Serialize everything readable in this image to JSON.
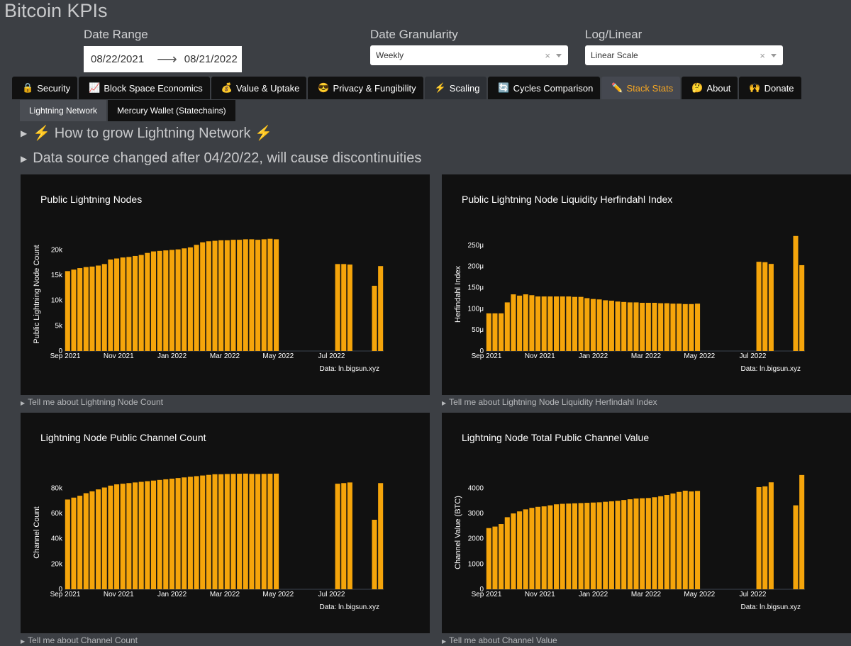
{
  "app": {
    "title": "Bitcoin KPIs"
  },
  "controls": {
    "date_range": {
      "label": "Date Range",
      "start": "08/22/2021",
      "end": "08/21/2022",
      "arrow": "⟶"
    },
    "granularity": {
      "label": "Date Granularity",
      "value": "Weekly",
      "clear": "×"
    },
    "scale": {
      "label": "Log/Linear",
      "value": "Linear Scale",
      "clear": "×"
    }
  },
  "tabs": [
    {
      "icon": "🔒",
      "label": "Security"
    },
    {
      "icon": "📈",
      "label": "Block Space Economics"
    },
    {
      "icon": "💰",
      "label": "Value & Uptake"
    },
    {
      "icon": "😎",
      "label": "Privacy & Fungibility"
    },
    {
      "icon": "⚡",
      "label": "Scaling"
    },
    {
      "icon": "🔄",
      "label": "Cycles Comparison"
    },
    {
      "icon": "✏️",
      "label": "Stack Stats"
    },
    {
      "icon": "🤔",
      "label": "About"
    },
    {
      "icon": "🙌",
      "label": "Donate"
    }
  ],
  "subtabs": [
    {
      "label": "Lightning Network"
    },
    {
      "label": "Mercury Wallet (Statechains)"
    }
  ],
  "disclosures": [
    {
      "text": "⚡ How to grow Lightning Network ⚡"
    },
    {
      "text": "Data source changed after 04/20/22, will cause discontinuities"
    }
  ],
  "tell_links": [
    "Tell me about Lightning Node Count",
    "Tell me about Lightning Node Liquidity Herfindahl Index",
    "Tell me about Channel Count",
    "Tell me about Channel Value"
  ],
  "bar_color": "#f5a50b",
  "chart_data": [
    {
      "type": "bar",
      "title": "Public Lightning Nodes",
      "ylabel": "Public Lightning Node Count",
      "source": "Data: ln.bigsun.xyz",
      "x_ticks": [
        "Sep 2021",
        "Nov 2021",
        "Jan 2022",
        "Mar 2022",
        "May 2022",
        "Jul 2022"
      ],
      "y_ticks": [
        {
          "v": 0,
          "t": "0"
        },
        {
          "v": 5000,
          "t": "5k"
        },
        {
          "v": 10000,
          "t": "10k"
        },
        {
          "v": 15000,
          "t": "15k"
        },
        {
          "v": 20000,
          "t": "20k"
        }
      ],
      "ylim": [
        0,
        23000
      ],
      "week_start": 0,
      "values": [
        15800,
        16100,
        16400,
        16600,
        16700,
        16900,
        17200,
        18100,
        18300,
        18500,
        18600,
        18800,
        19000,
        19400,
        19700,
        19800,
        19900,
        20000,
        20100,
        20300,
        20500,
        21000,
        21500,
        21700,
        21800,
        21900,
        21900,
        22000,
        22000,
        22100,
        22100,
        22000,
        22100,
        22200,
        22100,
        null,
        null,
        null,
        null,
        null,
        null,
        null,
        null,
        null,
        17200,
        17200,
        17100,
        null,
        null,
        null,
        12900,
        16800
      ]
    },
    {
      "type": "bar",
      "title": "Public Lightning Node Liquidity Herfindahl Index",
      "ylabel": "Herfindahl Index",
      "source": "Data: ln.bigsun.xyz",
      "x_ticks": [
        "Sep 2021",
        "Nov 2021",
        "Jan 2022",
        "Mar 2022",
        "May 2022",
        "Jul 2022"
      ],
      "y_ticks": [
        {
          "v": 0,
          "t": "0"
        },
        {
          "v": 50,
          "t": "50μ"
        },
        {
          "v": 100,
          "t": "100μ"
        },
        {
          "v": 150,
          "t": "150μ"
        },
        {
          "v": 200,
          "t": "200μ"
        },
        {
          "v": 250,
          "t": "250μ"
        }
      ],
      "ylim": [
        0,
        275
      ],
      "week_start": 0,
      "values": [
        89,
        89,
        89,
        115,
        134,
        131,
        134,
        132,
        129,
        129,
        129,
        129,
        129,
        129,
        128,
        128,
        125,
        123,
        122,
        120,
        119,
        117,
        116,
        115,
        115,
        114,
        114,
        114,
        113,
        113,
        112,
        112,
        111,
        111,
        112,
        null,
        null,
        null,
        null,
        null,
        null,
        null,
        null,
        null,
        211,
        210,
        206,
        null,
        null,
        null,
        272,
        203
      ]
    },
    {
      "type": "bar",
      "title": "Lightning Node Public Channel Count",
      "ylabel": "Channel Count",
      "source": "Data: ln.bigsun.xyz",
      "x_ticks": [
        "Sep 2021",
        "Nov 2021",
        "Jan 2022",
        "Mar 2022",
        "May 2022",
        "Jul 2022"
      ],
      "y_ticks": [
        {
          "v": 0,
          "t": "0"
        },
        {
          "v": 20000,
          "t": "20k"
        },
        {
          "v": 40000,
          "t": "40k"
        },
        {
          "v": 60000,
          "t": "60k"
        },
        {
          "v": 80000,
          "t": "80k"
        }
      ],
      "ylim": [
        0,
        92000
      ],
      "week_start": 0,
      "values": [
        71000,
        72500,
        74000,
        76000,
        77500,
        79000,
        80500,
        82000,
        83000,
        83500,
        84000,
        84500,
        85000,
        85500,
        86000,
        86500,
        87000,
        87500,
        88000,
        88500,
        89000,
        89500,
        90000,
        90500,
        91000,
        91000,
        91200,
        91300,
        91400,
        91500,
        91300,
        91200,
        91300,
        91400,
        91500,
        null,
        null,
        null,
        null,
        null,
        null,
        null,
        null,
        null,
        83500,
        84000,
        84500,
        null,
        null,
        null,
        55000,
        84000
      ]
    },
    {
      "type": "bar",
      "title": "Lightning Node Total Public Channel Value",
      "ylabel": "Channel Value (BTC)",
      "source": "Data: ln.bigsun.xyz",
      "x_ticks": [
        "Sep 2021",
        "Nov 2021",
        "Jan 2022",
        "Mar 2022",
        "May 2022",
        "Jul 2022"
      ],
      "y_ticks": [
        {
          "v": 0,
          "t": "0"
        },
        {
          "v": 1000,
          "t": "1000"
        },
        {
          "v": 2000,
          "t": "2000"
        },
        {
          "v": 3000,
          "t": "3000"
        },
        {
          "v": 4000,
          "t": "4000"
        }
      ],
      "ylim": [
        0,
        4600
      ],
      "week_start": 0,
      "values": [
        2420,
        2480,
        2580,
        2850,
        3000,
        3080,
        3160,
        3220,
        3260,
        3280,
        3320,
        3360,
        3380,
        3390,
        3400,
        3410,
        3420,
        3430,
        3440,
        3460,
        3480,
        3500,
        3530,
        3560,
        3590,
        3600,
        3610,
        3640,
        3680,
        3730,
        3790,
        3850,
        3900,
        3870,
        3890,
        null,
        null,
        null,
        null,
        null,
        null,
        null,
        null,
        null,
        4040,
        4070,
        4230,
        null,
        null,
        null,
        3320,
        4520
      ]
    }
  ]
}
